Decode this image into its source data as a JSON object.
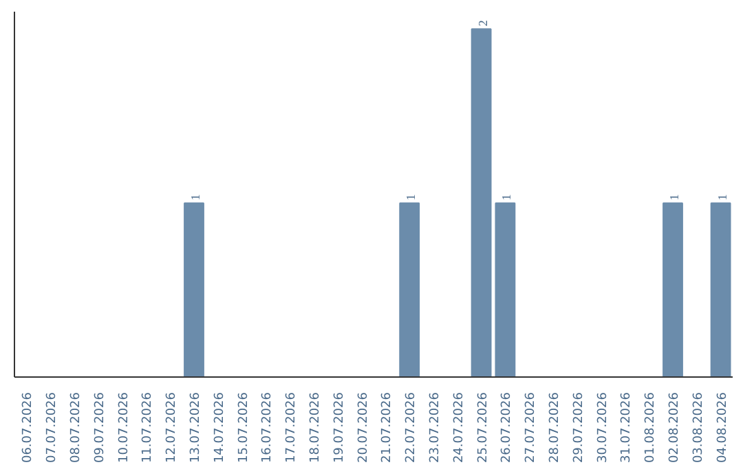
{
  "chart_data": {
    "type": "bar",
    "categories": [
      "06.07.2026",
      "07.07.2026",
      "08.07.2026",
      "09.07.2026",
      "10.07.2026",
      "11.07.2026",
      "12.07.2026",
      "13.07.2026",
      "14.07.2026",
      "15.07.2026",
      "16.07.2026",
      "17.07.2026",
      "18.07.2026",
      "19.07.2026",
      "20.07.2026",
      "21.07.2026",
      "22.07.2026",
      "23.07.2026",
      "24.07.2026",
      "25.07.2026",
      "26.07.2026",
      "27.07.2026",
      "28.07.2026",
      "29.07.2026",
      "30.07.2026",
      "31.07.2026",
      "01.08.2026",
      "02.08.2026",
      "03.08.2026",
      "04.08.2026"
    ],
    "values": [
      0,
      0,
      0,
      0,
      0,
      0,
      0,
      1,
      0,
      0,
      0,
      0,
      0,
      0,
      0,
      0,
      1,
      0,
      0,
      2,
      1,
      0,
      0,
      0,
      0,
      0,
      0,
      1,
      0,
      1
    ],
    "value_labels": [
      null,
      null,
      null,
      null,
      null,
      null,
      null,
      "1",
      null,
      null,
      null,
      null,
      null,
      null,
      null,
      null,
      "1",
      null,
      null,
      "2",
      "1",
      null,
      null,
      null,
      null,
      null,
      null,
      "1",
      null,
      "1"
    ],
    "color": "#6b8cab",
    "grid": false
  }
}
